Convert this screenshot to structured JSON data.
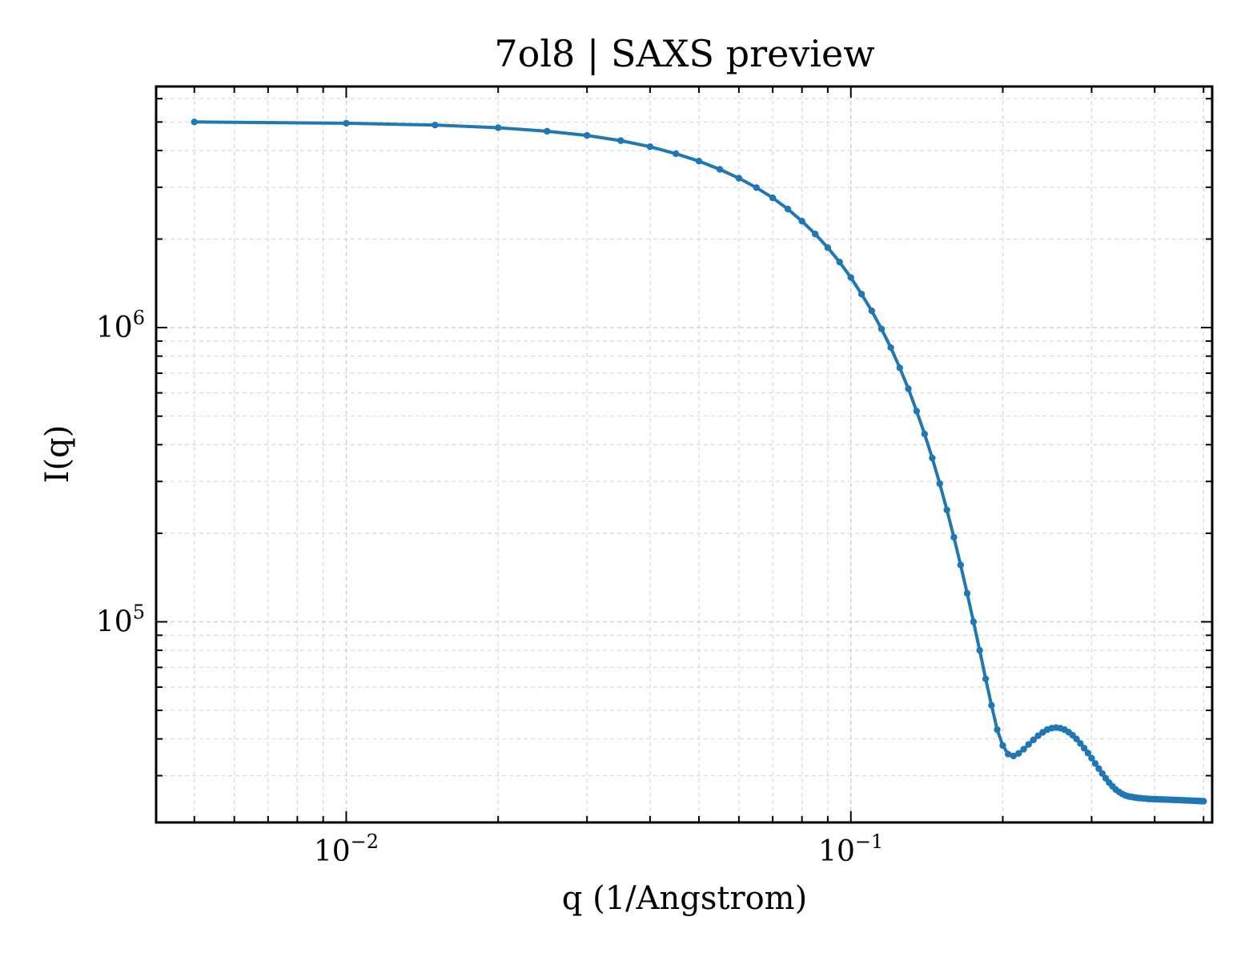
{
  "chart_data": {
    "type": "line",
    "title": "7ol8 | SAXS preview",
    "xlabel": "q (1/Angstrom)",
    "ylabel": "I(q)",
    "xscale": "log",
    "yscale": "log",
    "xlim": [
      0.0042,
      0.52
    ],
    "ylim": [
      20800,
      6600000
    ],
    "grid": true,
    "legend": "none",
    "x_ticks": [
      {
        "base": "10",
        "exp": "−2",
        "value": 0.01
      },
      {
        "base": "10",
        "exp": "−1",
        "value": 0.1
      }
    ],
    "y_ticks": [
      {
        "base": "10",
        "exp": "5",
        "value": 100000
      },
      {
        "base": "10",
        "exp": "6",
        "value": 1000000
      }
    ],
    "series": [
      {
        "color": "#1f77b4",
        "marker": "dot",
        "x": [
          0.005,
          0.01,
          0.015,
          0.02,
          0.025,
          0.03,
          0.035,
          0.04,
          0.045,
          0.05,
          0.055,
          0.06,
          0.065,
          0.07,
          0.075,
          0.08,
          0.085,
          0.09,
          0.095,
          0.1,
          0.105,
          0.11,
          0.115,
          0.12,
          0.125,
          0.13,
          0.135,
          0.14,
          0.145,
          0.15,
          0.155,
          0.16,
          0.165,
          0.17,
          0.175,
          0.18,
          0.185,
          0.19,
          0.195,
          0.2,
          0.205,
          0.21,
          0.215,
          0.22,
          0.225,
          0.23,
          0.235,
          0.24,
          0.245,
          0.25,
          0.255,
          0.26,
          0.265,
          0.27,
          0.275,
          0.28,
          0.285,
          0.29,
          0.295,
          0.3,
          0.305,
          0.31,
          0.315,
          0.32,
          0.325,
          0.33,
          0.335,
          0.34,
          0.345,
          0.35,
          0.355,
          0.36,
          0.365,
          0.37,
          0.375,
          0.38,
          0.385,
          0.39,
          0.395,
          0.4,
          0.405,
          0.41,
          0.415,
          0.42,
          0.425,
          0.43,
          0.435,
          0.44,
          0.445,
          0.45,
          0.455,
          0.46,
          0.465,
          0.47,
          0.475,
          0.48,
          0.485,
          0.49,
          0.495,
          0.5
        ],
        "y": [
          5000000,
          4950000,
          4880000,
          4780000,
          4650000,
          4500000,
          4320000,
          4120000,
          3900000,
          3680000,
          3450000,
          3220000,
          2990000,
          2760000,
          2530000,
          2300000,
          2080000,
          1870000,
          1670000,
          1480000,
          1300000,
          1140000,
          990000,
          855000,
          730000,
          620000,
          520000,
          435000,
          360000,
          295000,
          240000,
          194000,
          156000,
          125000,
          100000,
          80000,
          64000,
          52000,
          43000,
          38000,
          35500,
          35000,
          35700,
          36900,
          38300,
          39700,
          41000,
          42100,
          43000,
          43500,
          43700,
          43500,
          43000,
          42200,
          41200,
          40000,
          38600,
          37200,
          35800,
          34400,
          33000,
          31700,
          30500,
          29400,
          28400,
          27600,
          26900,
          26400,
          26000,
          25700,
          25500,
          25400,
          25300,
          25200,
          25150,
          25100,
          25050,
          25000,
          24980,
          24960,
          24940,
          24920,
          24900,
          24880,
          24860,
          24840,
          24820,
          24800,
          24780,
          24760,
          24740,
          24720,
          24700,
          24680,
          24660,
          24640,
          24620,
          24600,
          24580,
          24560
        ]
      }
    ]
  }
}
